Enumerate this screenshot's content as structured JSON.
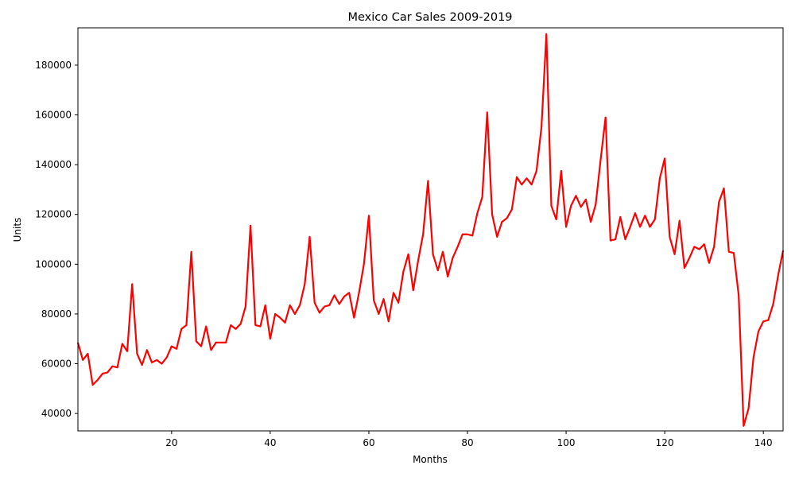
{
  "chart_data": {
    "type": "line",
    "title": "Mexico Car Sales 2009-2019",
    "xlabel": "Months",
    "ylabel": "Units",
    "xlim": [
      1,
      144
    ],
    "ylim": [
      33000,
      195000
    ],
    "x_ticks": [
      20,
      40,
      60,
      80,
      100,
      120,
      140
    ],
    "y_ticks": [
      40000,
      60000,
      80000,
      100000,
      120000,
      140000,
      160000,
      180000
    ],
    "grid": false,
    "legend": "none",
    "line_color": "#ff0000",
    "series": [
      {
        "x": [
          1,
          2,
          3,
          4,
          5,
          6,
          7,
          8,
          9,
          10,
          11,
          12,
          13,
          14,
          15,
          16,
          17,
          18,
          19,
          20,
          21,
          22,
          23,
          24,
          25,
          26,
          27,
          28,
          29,
          30,
          31,
          32,
          33,
          34,
          35,
          36,
          37,
          38,
          39,
          40,
          41,
          42,
          43,
          44,
          45,
          46,
          47,
          48,
          49,
          50,
          51,
          52,
          53,
          54,
          55,
          56,
          57,
          58,
          59,
          60,
          61,
          62,
          63,
          64,
          65,
          66,
          67,
          68,
          69,
          70,
          71,
          72,
          73,
          74,
          75,
          76,
          77,
          78,
          79,
          80,
          81,
          82,
          83,
          84,
          85,
          86,
          87,
          88,
          89,
          90,
          91,
          92,
          93,
          94,
          95,
          96,
          97,
          98,
          99,
          100,
          101,
          102,
          103,
          104,
          105,
          106,
          107,
          108,
          109,
          110,
          111,
          112,
          113,
          114,
          115,
          116,
          117,
          118,
          119,
          120,
          121,
          122,
          123,
          124,
          125,
          126,
          127,
          128,
          129,
          130,
          131,
          132,
          133,
          134,
          135,
          136,
          137,
          138,
          139,
          140,
          141,
          142,
          143,
          144
        ],
        "values": [
          68500,
          61500,
          64000,
          51500,
          53500,
          56000,
          56500,
          59000,
          58500,
          68000,
          65000,
          92000,
          64000,
          59500,
          65500,
          60500,
          61500,
          60000,
          62500,
          67000,
          66000,
          74000,
          75500,
          105000,
          69000,
          67000,
          75000,
          65500,
          68500,
          68500,
          68500,
          75500,
          74000,
          76000,
          83000,
          115500,
          75500,
          75000,
          83500,
          70000,
          80000,
          78500,
          76500,
          83500,
          80000,
          83500,
          92000,
          111000,
          84500,
          80500,
          83000,
          83500,
          87500,
          84000,
          87000,
          88500,
          78500,
          88500,
          100000,
          119500,
          85500,
          80000,
          86000,
          77000,
          88500,
          84500,
          97000,
          104000,
          89500,
          101500,
          112000,
          133500,
          104000,
          97500,
          105000,
          95000,
          102500,
          107000,
          112000,
          112000,
          111500,
          120500,
          127000,
          161000,
          120000,
          111000,
          117000,
          118500,
          122000,
          135000,
          132000,
          134500,
          132000,
          137500,
          155000,
          192500,
          123500,
          118000,
          137500,
          115000,
          123500,
          127500,
          123000,
          126000,
          117000,
          124000,
          142000,
          159000,
          109500,
          110000,
          119000,
          110000,
          115000,
          120500,
          115000,
          119500,
          115000,
          118000,
          134500,
          142500,
          111000,
          104000,
          117500,
          98500,
          102500,
          107000,
          106000,
          108000,
          100500,
          107000,
          125000,
          130500,
          105000,
          104500,
          87500,
          35000,
          42000,
          62500,
          73000,
          77000,
          77500,
          84000,
          95500,
          105500
        ]
      }
    ]
  }
}
